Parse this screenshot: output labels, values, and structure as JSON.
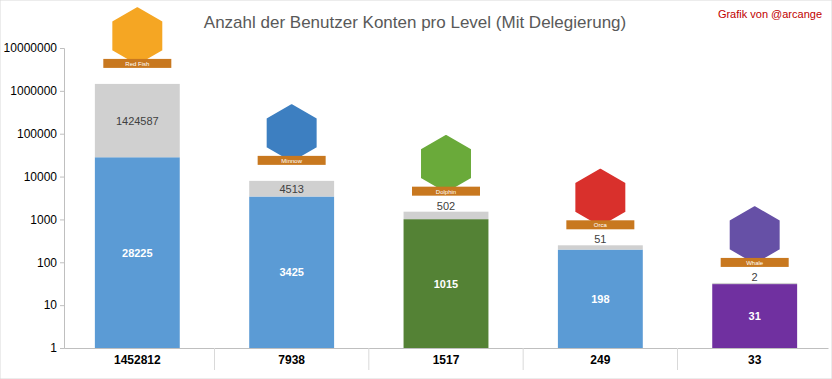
{
  "chart_data": {
    "type": "bar",
    "title": "Anzahl der Benutzer Konten pro Level (Mit Delegierung)",
    "subtitle": "Grafik von @arcange",
    "categories": [
      "1452812",
      "7938",
      "1517",
      "249",
      "33"
    ],
    "annotations": [
      "Red Fish",
      "Minnow",
      "Dolphin",
      "Orca",
      "Whale"
    ],
    "series": [
      {
        "colors": [
          "#5b9bd5",
          "#5b9bd5",
          "#548235",
          "#5b9bd5",
          "#7030a0"
        ],
        "values": [
          28225,
          3425,
          1015,
          198,
          31
        ]
      },
      {
        "color": "#d0d0d0",
        "values": [
          1424587,
          4513,
          502,
          51,
          2
        ]
      }
    ],
    "stacked": true,
    "log": "y",
    "grid": false,
    "data_labels": true,
    "ylim": [
      1,
      10000000
    ],
    "yticks": [
      1,
      10,
      100,
      1000,
      10000,
      100000,
      1000000,
      10000000
    ]
  }
}
